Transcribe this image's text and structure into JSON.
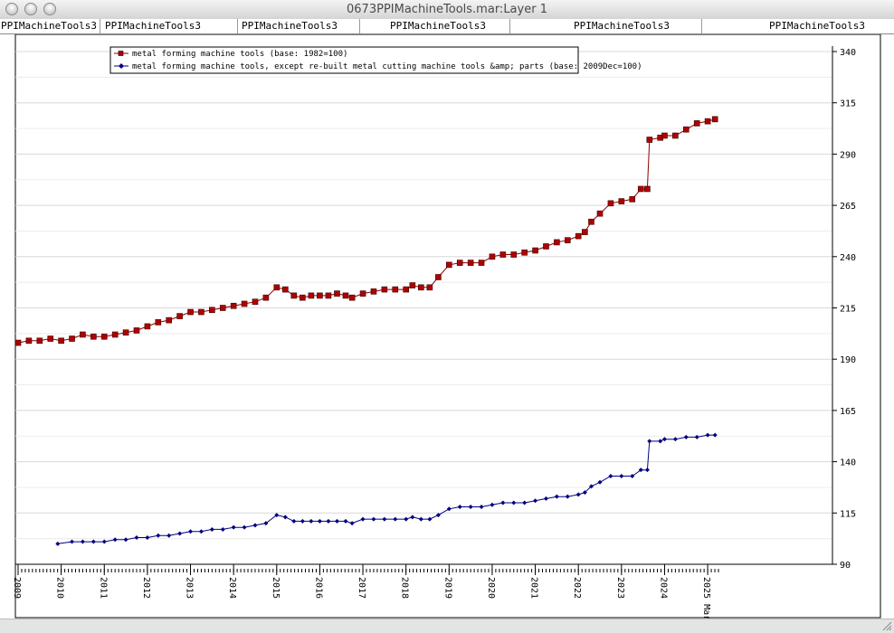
{
  "window": {
    "title": "0673PPIMachineTools.mar:Layer 1"
  },
  "tabs": [
    "PPIMachineTools3",
    "PPIMachineTools3",
    "PPIMachineTools3",
    "PPIMachineTools3",
    "PPIMachineTools3",
    "PPIMachineTools3"
  ],
  "chart_data": {
    "type": "line",
    "title": "",
    "xlabel": "",
    "ylabel": "",
    "ylim": [
      90,
      340
    ],
    "yticks": [
      90,
      115,
      140,
      165,
      190,
      215,
      240,
      265,
      290,
      315,
      340
    ],
    "xlim": [
      2009.0,
      2025.25
    ],
    "xticks": [
      "2009",
      "2010",
      "2011",
      "2012",
      "2013",
      "2014",
      "2015",
      "2016",
      "2017",
      "2018",
      "2019",
      "2020",
      "2021",
      "2022",
      "2023",
      "2024",
      "2025"
    ],
    "xtick_last_label": "2025 Mar",
    "grid": true,
    "legend_position": "top-left",
    "y_axis_side": "right",
    "series": [
      {
        "name": "metal forming machine tools (base: 1982=100)",
        "color": "#8b0000",
        "marker": "square",
        "points": [
          [
            2009.0,
            198
          ],
          [
            2009.25,
            199
          ],
          [
            2009.5,
            199
          ],
          [
            2009.75,
            200
          ],
          [
            2010.0,
            199
          ],
          [
            2010.25,
            200
          ],
          [
            2010.5,
            202
          ],
          [
            2010.75,
            201
          ],
          [
            2011.0,
            201
          ],
          [
            2011.25,
            202
          ],
          [
            2011.5,
            203
          ],
          [
            2011.75,
            204
          ],
          [
            2012.0,
            206
          ],
          [
            2012.25,
            208
          ],
          [
            2012.5,
            209
          ],
          [
            2012.75,
            211
          ],
          [
            2013.0,
            213
          ],
          [
            2013.25,
            213
          ],
          [
            2013.5,
            214
          ],
          [
            2013.75,
            215
          ],
          [
            2014.0,
            216
          ],
          [
            2014.25,
            217
          ],
          [
            2014.5,
            218
          ],
          [
            2014.75,
            220
          ],
          [
            2015.0,
            225
          ],
          [
            2015.2,
            224
          ],
          [
            2015.4,
            221
          ],
          [
            2015.6,
            220
          ],
          [
            2015.8,
            221
          ],
          [
            2016.0,
            221
          ],
          [
            2016.2,
            221
          ],
          [
            2016.4,
            222
          ],
          [
            2016.6,
            221
          ],
          [
            2016.75,
            220
          ],
          [
            2017.0,
            222
          ],
          [
            2017.25,
            223
          ],
          [
            2017.5,
            224
          ],
          [
            2017.75,
            224
          ],
          [
            2018.0,
            224
          ],
          [
            2018.15,
            226
          ],
          [
            2018.35,
            225
          ],
          [
            2018.55,
            225
          ],
          [
            2018.75,
            230
          ],
          [
            2019.0,
            236
          ],
          [
            2019.25,
            237
          ],
          [
            2019.5,
            237
          ],
          [
            2019.75,
            237
          ],
          [
            2020.0,
            240
          ],
          [
            2020.25,
            241
          ],
          [
            2020.5,
            241
          ],
          [
            2020.75,
            242
          ],
          [
            2021.0,
            243
          ],
          [
            2021.25,
            245
          ],
          [
            2021.5,
            247
          ],
          [
            2021.75,
            248
          ],
          [
            2022.0,
            250
          ],
          [
            2022.15,
            252
          ],
          [
            2022.3,
            257
          ],
          [
            2022.5,
            261
          ],
          [
            2022.75,
            266
          ],
          [
            2023.0,
            267
          ],
          [
            2023.25,
            268
          ],
          [
            2023.45,
            273
          ],
          [
            2023.6,
            273
          ],
          [
            2023.65,
            297
          ],
          [
            2023.9,
            298
          ],
          [
            2024.0,
            299
          ],
          [
            2024.25,
            299
          ],
          [
            2024.5,
            302
          ],
          [
            2024.75,
            305
          ],
          [
            2025.0,
            306
          ],
          [
            2025.17,
            307
          ]
        ]
      },
      {
        "name": "metal forming machine tools, except re-built metal cutting machine tools &amp; parts (base: 2009Dec=100)",
        "color": "#000080",
        "marker": "diamond",
        "points": [
          [
            2009.92,
            100
          ],
          [
            2010.25,
            101
          ],
          [
            2010.5,
            101
          ],
          [
            2010.75,
            101
          ],
          [
            2011.0,
            101
          ],
          [
            2011.25,
            102
          ],
          [
            2011.5,
            102
          ],
          [
            2011.75,
            103
          ],
          [
            2012.0,
            103
          ],
          [
            2012.25,
            104
          ],
          [
            2012.5,
            104
          ],
          [
            2012.75,
            105
          ],
          [
            2013.0,
            106
          ],
          [
            2013.25,
            106
          ],
          [
            2013.5,
            107
          ],
          [
            2013.75,
            107
          ],
          [
            2014.0,
            108
          ],
          [
            2014.25,
            108
          ],
          [
            2014.5,
            109
          ],
          [
            2014.75,
            110
          ],
          [
            2015.0,
            114
          ],
          [
            2015.2,
            113
          ],
          [
            2015.4,
            111
          ],
          [
            2015.6,
            111
          ],
          [
            2015.8,
            111
          ],
          [
            2016.0,
            111
          ],
          [
            2016.2,
            111
          ],
          [
            2016.4,
            111
          ],
          [
            2016.6,
            111
          ],
          [
            2016.75,
            110
          ],
          [
            2017.0,
            112
          ],
          [
            2017.25,
            112
          ],
          [
            2017.5,
            112
          ],
          [
            2017.75,
            112
          ],
          [
            2018.0,
            112
          ],
          [
            2018.15,
            113
          ],
          [
            2018.35,
            112
          ],
          [
            2018.55,
            112
          ],
          [
            2018.75,
            114
          ],
          [
            2019.0,
            117
          ],
          [
            2019.25,
            118
          ],
          [
            2019.5,
            118
          ],
          [
            2019.75,
            118
          ],
          [
            2020.0,
            119
          ],
          [
            2020.25,
            120
          ],
          [
            2020.5,
            120
          ],
          [
            2020.75,
            120
          ],
          [
            2021.0,
            121
          ],
          [
            2021.25,
            122
          ],
          [
            2021.5,
            123
          ],
          [
            2021.75,
            123
          ],
          [
            2022.0,
            124
          ],
          [
            2022.15,
            125
          ],
          [
            2022.3,
            128
          ],
          [
            2022.5,
            130
          ],
          [
            2022.75,
            133
          ],
          [
            2023.0,
            133
          ],
          [
            2023.25,
            133
          ],
          [
            2023.45,
            136
          ],
          [
            2023.6,
            136
          ],
          [
            2023.65,
            150
          ],
          [
            2023.9,
            150
          ],
          [
            2024.0,
            151
          ],
          [
            2024.25,
            151
          ],
          [
            2024.5,
            152
          ],
          [
            2024.75,
            152
          ],
          [
            2025.0,
            153
          ],
          [
            2025.17,
            153
          ]
        ]
      }
    ]
  }
}
